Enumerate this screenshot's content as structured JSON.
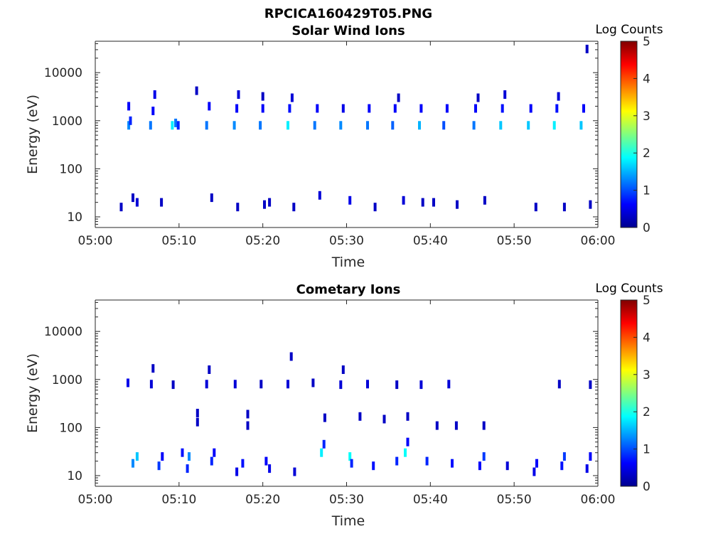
{
  "figure": {
    "file_title": "RPCICA160429T05.PNG"
  },
  "colors": {
    "colormap": [
      "#00008f",
      "#0000ff",
      "#0080ff",
      "#00ffff",
      "#80ff80",
      "#ffff00",
      "#ff8000",
      "#ff0000",
      "#800000"
    ],
    "axis": "#262626"
  },
  "chart_data": [
    {
      "type": "heatmap",
      "title": "Solar Wind Ions",
      "xlabel": "Time",
      "ylabel": "Energy (eV)",
      "xlim": [
        "05:00",
        "06:00"
      ],
      "x_ticks": [
        "05:00",
        "05:10",
        "05:20",
        "05:30",
        "05:40",
        "05:50",
        "06:00"
      ],
      "yscale": "log",
      "ylim": [
        6,
        45000
      ],
      "y_ticks": [
        10,
        100,
        1000,
        10000
      ],
      "y_tick_labels": [
        "10",
        "100",
        "1000",
        "10000"
      ],
      "colorbar": {
        "label": "Log Counts",
        "range": [
          0,
          5
        ],
        "ticks": [
          "0",
          "1",
          "2",
          "3",
          "4",
          "5"
        ]
      },
      "points": [
        {
          "t": 4.0,
          "e": 800,
          "v": 1.3
        },
        {
          "t": 4.2,
          "e": 1000,
          "v": 0.8
        },
        {
          "t": 4.0,
          "e": 2000,
          "v": 0.6
        },
        {
          "t": 6.6,
          "e": 800,
          "v": 1.2
        },
        {
          "t": 6.9,
          "e": 1600,
          "v": 0.6
        },
        {
          "t": 7.1,
          "e": 3500,
          "v": 0.5
        },
        {
          "t": 9.2,
          "e": 800,
          "v": 1.8
        },
        {
          "t": 9.6,
          "e": 900,
          "v": 1.2
        },
        {
          "t": 9.9,
          "e": 800,
          "v": 0.8
        },
        {
          "t": 12.1,
          "e": 4200,
          "v": 0.3
        },
        {
          "t": 13.3,
          "e": 800,
          "v": 1.2
        },
        {
          "t": 13.6,
          "e": 2000,
          "v": 0.6
        },
        {
          "t": 16.6,
          "e": 800,
          "v": 1.3
        },
        {
          "t": 17.1,
          "e": 3500,
          "v": 0.4
        },
        {
          "t": 16.9,
          "e": 1800,
          "v": 0.6
        },
        {
          "t": 19.7,
          "e": 800,
          "v": 1.2
        },
        {
          "t": 20.0,
          "e": 1800,
          "v": 0.6
        },
        {
          "t": 20.0,
          "e": 3200,
          "v": 0.3
        },
        {
          "t": 23.0,
          "e": 800,
          "v": 1.8
        },
        {
          "t": 23.2,
          "e": 1800,
          "v": 0.7
        },
        {
          "t": 23.5,
          "e": 3000,
          "v": 0.4
        },
        {
          "t": 26.2,
          "e": 800,
          "v": 1.2
        },
        {
          "t": 26.5,
          "e": 1800,
          "v": 0.6
        },
        {
          "t": 29.3,
          "e": 800,
          "v": 1.3
        },
        {
          "t": 29.6,
          "e": 1800,
          "v": 0.5
        },
        {
          "t": 32.5,
          "e": 800,
          "v": 1.2
        },
        {
          "t": 32.7,
          "e": 1800,
          "v": 0.6
        },
        {
          "t": 35.5,
          "e": 800,
          "v": 1.1
        },
        {
          "t": 35.8,
          "e": 1800,
          "v": 0.6
        },
        {
          "t": 36.2,
          "e": 3000,
          "v": 0.3
        },
        {
          "t": 38.7,
          "e": 800,
          "v": 1.5
        },
        {
          "t": 38.9,
          "e": 1800,
          "v": 0.6
        },
        {
          "t": 41.6,
          "e": 800,
          "v": 1.0
        },
        {
          "t": 42.0,
          "e": 1800,
          "v": 0.6
        },
        {
          "t": 45.2,
          "e": 800,
          "v": 1.2
        },
        {
          "t": 45.4,
          "e": 1800,
          "v": 0.6
        },
        {
          "t": 45.7,
          "e": 3000,
          "v": 0.3
        },
        {
          "t": 48.4,
          "e": 800,
          "v": 1.6
        },
        {
          "t": 48.6,
          "e": 1800,
          "v": 0.7
        },
        {
          "t": 48.9,
          "e": 3500,
          "v": 0.4
        },
        {
          "t": 51.7,
          "e": 800,
          "v": 1.6
        },
        {
          "t": 52.0,
          "e": 1800,
          "v": 0.6
        },
        {
          "t": 54.8,
          "e": 800,
          "v": 1.8
        },
        {
          "t": 55.1,
          "e": 1800,
          "v": 0.7
        },
        {
          "t": 55.3,
          "e": 3200,
          "v": 0.4
        },
        {
          "t": 58.0,
          "e": 800,
          "v": 1.6
        },
        {
          "t": 58.3,
          "e": 1800,
          "v": 0.6
        },
        {
          "t": 58.7,
          "e": 31000,
          "v": 0.3
        },
        {
          "t": 3.1,
          "e": 16,
          "v": 0.3
        },
        {
          "t": 4.5,
          "e": 25,
          "v": 0.3
        },
        {
          "t": 5.0,
          "e": 20,
          "v": 0.4
        },
        {
          "t": 7.9,
          "e": 20,
          "v": 0.3
        },
        {
          "t": 13.9,
          "e": 25,
          "v": 0.3
        },
        {
          "t": 17.0,
          "e": 16,
          "v": 0.3
        },
        {
          "t": 20.2,
          "e": 18,
          "v": 0.3
        },
        {
          "t": 20.8,
          "e": 20,
          "v": 0.3
        },
        {
          "t": 23.7,
          "e": 16,
          "v": 0.3
        },
        {
          "t": 26.8,
          "e": 28,
          "v": 0.4
        },
        {
          "t": 30.4,
          "e": 22,
          "v": 0.5
        },
        {
          "t": 33.4,
          "e": 16,
          "v": 0.3
        },
        {
          "t": 36.8,
          "e": 22,
          "v": 0.4
        },
        {
          "t": 39.1,
          "e": 20,
          "v": 0.3
        },
        {
          "t": 40.4,
          "e": 20,
          "v": 0.3
        },
        {
          "t": 43.2,
          "e": 18,
          "v": 0.3
        },
        {
          "t": 46.5,
          "e": 22,
          "v": 0.3
        },
        {
          "t": 52.6,
          "e": 16,
          "v": 0.3
        },
        {
          "t": 56.0,
          "e": 16,
          "v": 0.3
        },
        {
          "t": 59.1,
          "e": 18,
          "v": 0.3
        }
      ]
    },
    {
      "type": "heatmap",
      "title": "Cometary Ions",
      "xlabel": "Time",
      "ylabel": "Energy (eV)",
      "xlim": [
        "05:00",
        "06:00"
      ],
      "x_ticks": [
        "05:00",
        "05:10",
        "05:20",
        "05:30",
        "05:40",
        "05:50",
        "06:00"
      ],
      "yscale": "log",
      "ylim": [
        6,
        45000
      ],
      "y_ticks": [
        10,
        100,
        1000,
        10000
      ],
      "y_tick_labels": [
        "10",
        "100",
        "1000",
        "10000"
      ],
      "colorbar": {
        "label": "Log Counts",
        "range": [
          0,
          5
        ],
        "ticks": [
          "0",
          "1",
          "2",
          "3",
          "4",
          "5"
        ]
      },
      "points": [
        {
          "t": 3.9,
          "e": 850,
          "v": 0.5
        },
        {
          "t": 6.7,
          "e": 800,
          "v": 0.4
        },
        {
          "t": 6.9,
          "e": 1700,
          "v": 0.3
        },
        {
          "t": 9.3,
          "e": 780,
          "v": 0.3
        },
        {
          "t": 13.3,
          "e": 800,
          "v": 0.4
        },
        {
          "t": 13.6,
          "e": 1600,
          "v": 0.3
        },
        {
          "t": 16.7,
          "e": 800,
          "v": 0.4
        },
        {
          "t": 19.8,
          "e": 800,
          "v": 0.3
        },
        {
          "t": 23.0,
          "e": 800,
          "v": 0.4
        },
        {
          "t": 23.4,
          "e": 3000,
          "v": 0.3
        },
        {
          "t": 26.0,
          "e": 850,
          "v": 0.3
        },
        {
          "t": 29.3,
          "e": 780,
          "v": 0.4
        },
        {
          "t": 29.6,
          "e": 1600,
          "v": 0.3
        },
        {
          "t": 32.5,
          "e": 800,
          "v": 0.4
        },
        {
          "t": 36.0,
          "e": 780,
          "v": 0.3
        },
        {
          "t": 38.9,
          "e": 780,
          "v": 0.4
        },
        {
          "t": 42.2,
          "e": 800,
          "v": 0.4
        },
        {
          "t": 55.4,
          "e": 800,
          "v": 0.3
        },
        {
          "t": 59.1,
          "e": 780,
          "v": 0.3
        },
        {
          "t": 12.2,
          "e": 200,
          "v": 0.3
        },
        {
          "t": 12.2,
          "e": 130,
          "v": 0.3
        },
        {
          "t": 18.2,
          "e": 190,
          "v": 0.3
        },
        {
          "t": 18.2,
          "e": 110,
          "v": 0.3
        },
        {
          "t": 27.4,
          "e": 160,
          "v": 0.3
        },
        {
          "t": 31.6,
          "e": 170,
          "v": 0.3
        },
        {
          "t": 34.5,
          "e": 150,
          "v": 0.3
        },
        {
          "t": 37.3,
          "e": 170,
          "v": 0.3
        },
        {
          "t": 40.8,
          "e": 110,
          "v": 0.3
        },
        {
          "t": 43.1,
          "e": 110,
          "v": 0.3
        },
        {
          "t": 46.4,
          "e": 110,
          "v": 0.3
        },
        {
          "t": 4.5,
          "e": 18,
          "v": 1.3
        },
        {
          "t": 5.0,
          "e": 25,
          "v": 1.6
        },
        {
          "t": 7.6,
          "e": 16,
          "v": 0.9
        },
        {
          "t": 8.0,
          "e": 25,
          "v": 0.6
        },
        {
          "t": 10.4,
          "e": 30,
          "v": 0.7
        },
        {
          "t": 11.0,
          "e": 14,
          "v": 0.8
        },
        {
          "t": 11.2,
          "e": 25,
          "v": 1.3
        },
        {
          "t": 13.9,
          "e": 20,
          "v": 0.8
        },
        {
          "t": 14.2,
          "e": 30,
          "v": 0.6
        },
        {
          "t": 16.9,
          "e": 12,
          "v": 0.5
        },
        {
          "t": 17.6,
          "e": 18,
          "v": 0.7
        },
        {
          "t": 20.4,
          "e": 20,
          "v": 0.6
        },
        {
          "t": 20.8,
          "e": 14,
          "v": 0.5
        },
        {
          "t": 23.8,
          "e": 12,
          "v": 0.4
        },
        {
          "t": 27.0,
          "e": 30,
          "v": 1.8
        },
        {
          "t": 27.3,
          "e": 45,
          "v": 0.8
        },
        {
          "t": 30.4,
          "e": 25,
          "v": 1.9
        },
        {
          "t": 30.6,
          "e": 18,
          "v": 0.8
        },
        {
          "t": 33.2,
          "e": 16,
          "v": 0.7
        },
        {
          "t": 36.0,
          "e": 20,
          "v": 0.8
        },
        {
          "t": 37.0,
          "e": 30,
          "v": 1.9
        },
        {
          "t": 37.3,
          "e": 50,
          "v": 0.6
        },
        {
          "t": 39.6,
          "e": 20,
          "v": 0.8
        },
        {
          "t": 42.6,
          "e": 18,
          "v": 0.7
        },
        {
          "t": 45.9,
          "e": 16,
          "v": 0.6
        },
        {
          "t": 46.4,
          "e": 25,
          "v": 0.9
        },
        {
          "t": 49.2,
          "e": 16,
          "v": 0.4
        },
        {
          "t": 52.4,
          "e": 12,
          "v": 0.5
        },
        {
          "t": 52.7,
          "e": 18,
          "v": 0.6
        },
        {
          "t": 55.7,
          "e": 16,
          "v": 0.7
        },
        {
          "t": 56.0,
          "e": 25,
          "v": 0.9
        },
        {
          "t": 58.7,
          "e": 14,
          "v": 0.5
        },
        {
          "t": 59.1,
          "e": 25,
          "v": 0.6
        }
      ]
    }
  ]
}
